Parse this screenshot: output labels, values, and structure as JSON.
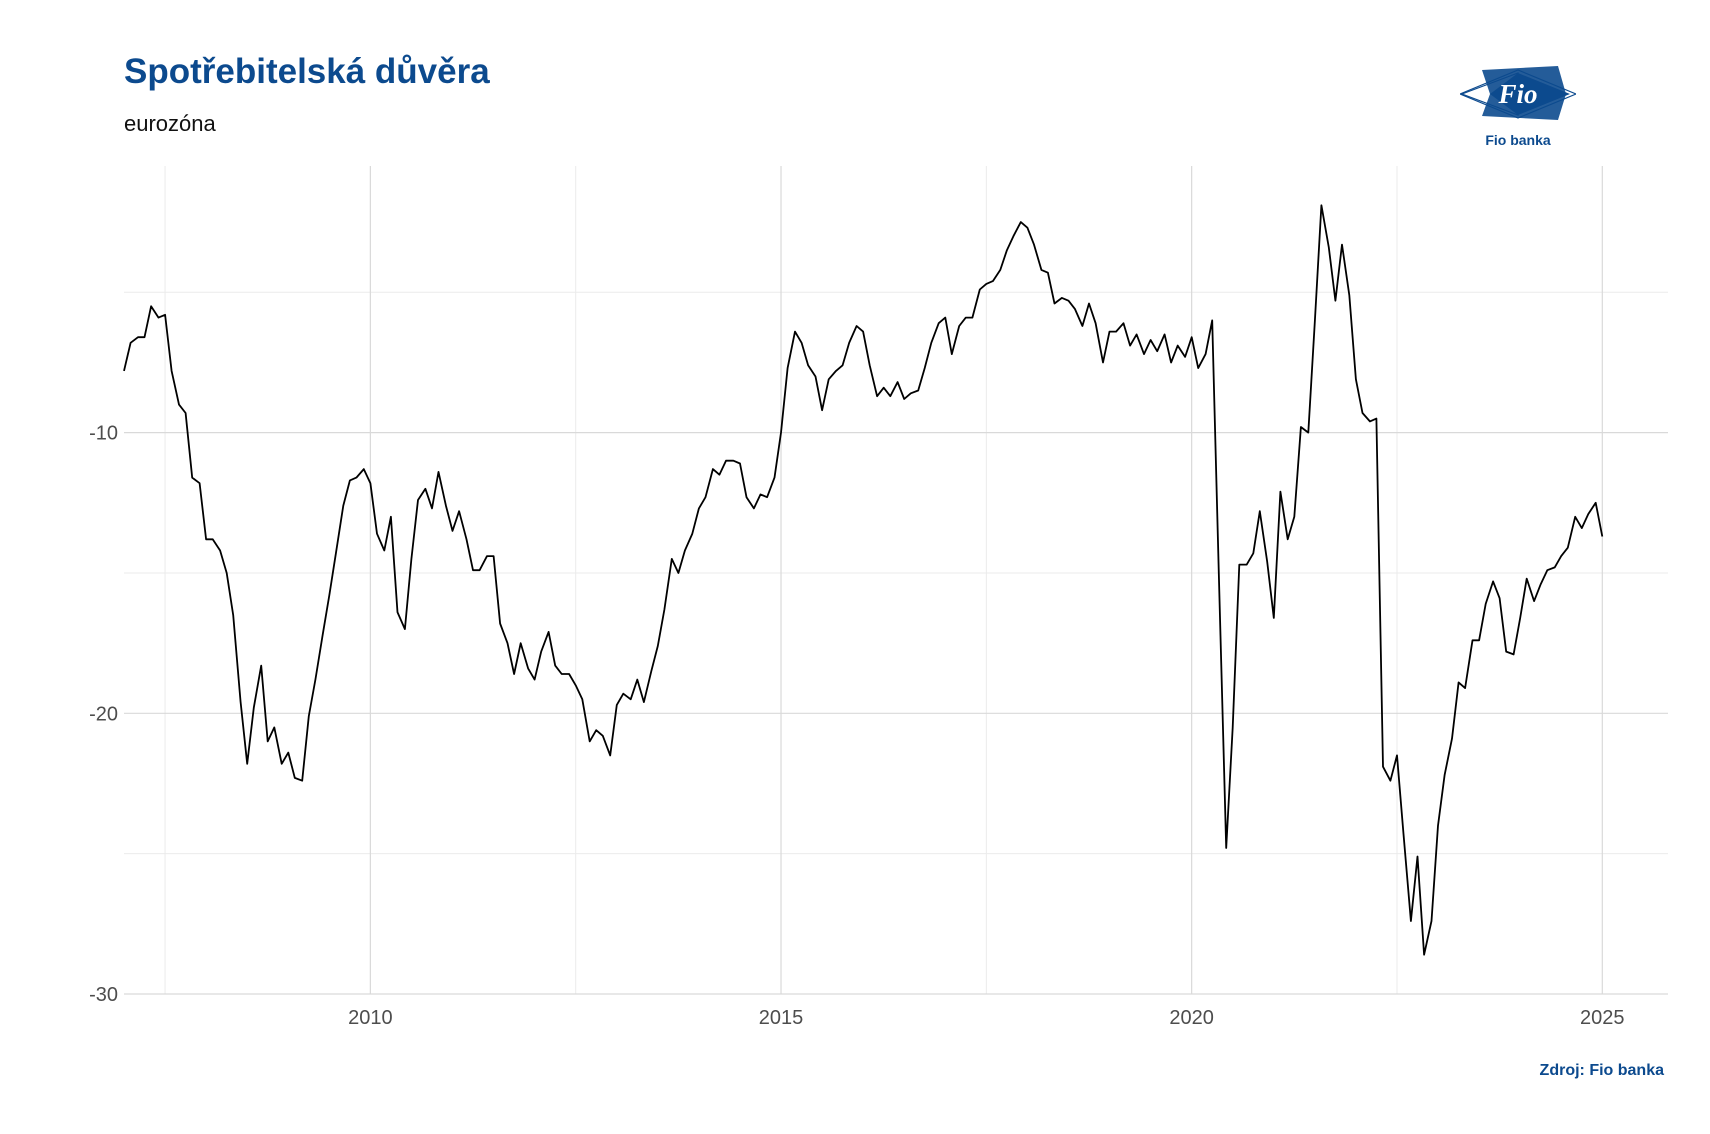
{
  "title": "Spotřebitelská důvěra",
  "subtitle": "eurozóna",
  "source": "Zdroj: Fio banka",
  "logo": {
    "mark": "Fio",
    "text": "Fio banka",
    "color": "#0c4a8e"
  },
  "chart_data": {
    "type": "line",
    "title": "Spotřebitelská důvěra",
    "subtitle": "eurozóna",
    "xlabel": "",
    "ylabel": "",
    "xlim": [
      2007.0,
      2025.8
    ],
    "ylim": [
      -30,
      -0.5
    ],
    "grid": true,
    "legend": "none",
    "x_ticks": [
      {
        "value": 2010,
        "label": "2010"
      },
      {
        "value": 2015,
        "label": "2015"
      },
      {
        "value": 2020,
        "label": "2020"
      },
      {
        "value": 2025,
        "label": "2025"
      }
    ],
    "y_ticks": [
      {
        "value": -10,
        "label": "-10"
      },
      {
        "value": -20,
        "label": "-20"
      },
      {
        "value": -30,
        "label": "-30"
      }
    ],
    "line_color": "#000000",
    "series": [
      {
        "values": [
          [
            2007.0,
            -7.8
          ],
          [
            2007.08,
            -6.8
          ],
          [
            2007.17,
            -6.6
          ],
          [
            2007.25,
            -6.6
          ],
          [
            2007.33,
            -5.5
          ],
          [
            2007.42,
            -5.9
          ],
          [
            2007.5,
            -5.8
          ],
          [
            2007.58,
            -7.8
          ],
          [
            2007.67,
            -9.0
          ],
          [
            2007.75,
            -9.3
          ],
          [
            2007.83,
            -11.6
          ],
          [
            2007.92,
            -11.8
          ],
          [
            2008.0,
            -13.8
          ],
          [
            2008.08,
            -13.8
          ],
          [
            2008.17,
            -14.2
          ],
          [
            2008.25,
            -15.0
          ],
          [
            2008.33,
            -16.5
          ],
          [
            2008.42,
            -19.6
          ],
          [
            2008.5,
            -21.8
          ],
          [
            2008.58,
            -19.8
          ],
          [
            2008.67,
            -18.3
          ],
          [
            2008.75,
            -21.0
          ],
          [
            2008.83,
            -20.5
          ],
          [
            2008.92,
            -21.8
          ],
          [
            2009.0,
            -21.4
          ],
          [
            2009.08,
            -22.3
          ],
          [
            2009.17,
            -22.4
          ],
          [
            2009.25,
            -20.1
          ],
          [
            2009.33,
            -18.8
          ],
          [
            2009.42,
            -17.2
          ],
          [
            2009.5,
            -15.8
          ],
          [
            2009.58,
            -14.3
          ],
          [
            2009.67,
            -12.6
          ],
          [
            2009.75,
            -11.7
          ],
          [
            2009.83,
            -11.6
          ],
          [
            2009.92,
            -11.3
          ],
          [
            2010.0,
            -11.8
          ],
          [
            2010.08,
            -13.6
          ],
          [
            2010.17,
            -14.2
          ],
          [
            2010.25,
            -13.0
          ],
          [
            2010.33,
            -16.4
          ],
          [
            2010.42,
            -17.0
          ],
          [
            2010.5,
            -14.5
          ],
          [
            2010.58,
            -12.4
          ],
          [
            2010.67,
            -12.0
          ],
          [
            2010.75,
            -12.7
          ],
          [
            2010.83,
            -11.4
          ],
          [
            2010.92,
            -12.6
          ],
          [
            2011.0,
            -13.5
          ],
          [
            2011.08,
            -12.8
          ],
          [
            2011.17,
            -13.8
          ],
          [
            2011.25,
            -14.9
          ],
          [
            2011.33,
            -14.9
          ],
          [
            2011.42,
            -14.4
          ],
          [
            2011.5,
            -14.4
          ],
          [
            2011.58,
            -16.8
          ],
          [
            2011.67,
            -17.5
          ],
          [
            2011.75,
            -18.6
          ],
          [
            2011.83,
            -17.5
          ],
          [
            2011.92,
            -18.4
          ],
          [
            2012.0,
            -18.8
          ],
          [
            2012.08,
            -17.8
          ],
          [
            2012.17,
            -17.1
          ],
          [
            2012.25,
            -18.3
          ],
          [
            2012.33,
            -18.6
          ],
          [
            2012.42,
            -18.6
          ],
          [
            2012.5,
            -19.0
          ],
          [
            2012.58,
            -19.5
          ],
          [
            2012.67,
            -21.0
          ],
          [
            2012.75,
            -20.6
          ],
          [
            2012.83,
            -20.8
          ],
          [
            2012.92,
            -21.5
          ],
          [
            2013.0,
            -19.7
          ],
          [
            2013.08,
            -19.3
          ],
          [
            2013.17,
            -19.5
          ],
          [
            2013.25,
            -18.8
          ],
          [
            2013.33,
            -19.6
          ],
          [
            2013.42,
            -18.5
          ],
          [
            2013.5,
            -17.6
          ],
          [
            2013.58,
            -16.3
          ],
          [
            2013.67,
            -14.5
          ],
          [
            2013.75,
            -15.0
          ],
          [
            2013.83,
            -14.2
          ],
          [
            2013.92,
            -13.6
          ],
          [
            2014.0,
            -12.7
          ],
          [
            2014.08,
            -12.3
          ],
          [
            2014.17,
            -11.3
          ],
          [
            2014.25,
            -11.5
          ],
          [
            2014.33,
            -11.0
          ],
          [
            2014.42,
            -11.0
          ],
          [
            2014.5,
            -11.1
          ],
          [
            2014.58,
            -12.3
          ],
          [
            2014.67,
            -12.7
          ],
          [
            2014.75,
            -12.2
          ],
          [
            2014.83,
            -12.3
          ],
          [
            2014.92,
            -11.6
          ],
          [
            2015.0,
            -10.0
          ],
          [
            2015.08,
            -7.7
          ],
          [
            2015.17,
            -6.4
          ],
          [
            2015.25,
            -6.8
          ],
          [
            2015.33,
            -7.6
          ],
          [
            2015.42,
            -8.0
          ],
          [
            2015.5,
            -9.2
          ],
          [
            2015.58,
            -8.1
          ],
          [
            2015.67,
            -7.8
          ],
          [
            2015.75,
            -7.6
          ],
          [
            2015.83,
            -6.8
          ],
          [
            2015.92,
            -6.2
          ],
          [
            2016.0,
            -6.4
          ],
          [
            2016.08,
            -7.6
          ],
          [
            2016.17,
            -8.7
          ],
          [
            2016.25,
            -8.4
          ],
          [
            2016.33,
            -8.7
          ],
          [
            2016.42,
            -8.2
          ],
          [
            2016.5,
            -8.8
          ],
          [
            2016.58,
            -8.6
          ],
          [
            2016.67,
            -8.5
          ],
          [
            2016.75,
            -7.7
          ],
          [
            2016.83,
            -6.8
          ],
          [
            2016.92,
            -6.1
          ],
          [
            2017.0,
            -5.9
          ],
          [
            2017.08,
            -7.2
          ],
          [
            2017.17,
            -6.2
          ],
          [
            2017.25,
            -5.9
          ],
          [
            2017.33,
            -5.9
          ],
          [
            2017.42,
            -4.9
          ],
          [
            2017.5,
            -4.7
          ],
          [
            2017.58,
            -4.6
          ],
          [
            2017.67,
            -4.2
          ],
          [
            2017.75,
            -3.5
          ],
          [
            2017.83,
            -3.0
          ],
          [
            2017.92,
            -2.5
          ],
          [
            2018.0,
            -2.7
          ],
          [
            2018.08,
            -3.3
          ],
          [
            2018.17,
            -4.2
          ],
          [
            2018.25,
            -4.3
          ],
          [
            2018.33,
            -5.4
          ],
          [
            2018.42,
            -5.2
          ],
          [
            2018.5,
            -5.3
          ],
          [
            2018.58,
            -5.6
          ],
          [
            2018.67,
            -6.2
          ],
          [
            2018.75,
            -5.4
          ],
          [
            2018.83,
            -6.1
          ],
          [
            2018.92,
            -7.5
          ],
          [
            2019.0,
            -6.4
          ],
          [
            2019.08,
            -6.4
          ],
          [
            2019.17,
            -6.1
          ],
          [
            2019.25,
            -6.9
          ],
          [
            2019.33,
            -6.5
          ],
          [
            2019.42,
            -7.2
          ],
          [
            2019.5,
            -6.7
          ],
          [
            2019.58,
            -7.1
          ],
          [
            2019.67,
            -6.5
          ],
          [
            2019.75,
            -7.5
          ],
          [
            2019.83,
            -6.9
          ],
          [
            2019.92,
            -7.3
          ],
          [
            2020.0,
            -6.6
          ],
          [
            2020.08,
            -7.7
          ],
          [
            2020.17,
            -7.2
          ],
          [
            2020.25,
            -6.0
          ],
          [
            2020.33,
            -15.0
          ],
          [
            2020.42,
            -24.8
          ],
          [
            2020.5,
            -20.5
          ],
          [
            2020.58,
            -14.7
          ],
          [
            2020.67,
            -14.7
          ],
          [
            2020.75,
            -14.3
          ],
          [
            2020.83,
            -12.8
          ],
          [
            2020.92,
            -14.6
          ],
          [
            2021.0,
            -16.6
          ],
          [
            2021.08,
            -12.1
          ],
          [
            2021.17,
            -13.8
          ],
          [
            2021.25,
            -13.0
          ],
          [
            2021.33,
            -9.8
          ],
          [
            2021.42,
            -10.0
          ],
          [
            2021.5,
            -6.0
          ],
          [
            2021.58,
            -1.9
          ],
          [
            2021.67,
            -3.4
          ],
          [
            2021.75,
            -5.3
          ],
          [
            2021.83,
            -3.3
          ],
          [
            2021.92,
            -5.1
          ],
          [
            2022.0,
            -8.1
          ],
          [
            2022.08,
            -9.3
          ],
          [
            2022.17,
            -9.6
          ],
          [
            2022.25,
            -9.5
          ],
          [
            2022.33,
            -21.9
          ],
          [
            2022.42,
            -22.4
          ],
          [
            2022.5,
            -21.5
          ],
          [
            2022.58,
            -24.3
          ],
          [
            2022.67,
            -27.4
          ],
          [
            2022.75,
            -25.1
          ],
          [
            2022.83,
            -28.6
          ],
          [
            2022.92,
            -27.4
          ],
          [
            2023.0,
            -24.0
          ],
          [
            2023.08,
            -22.2
          ],
          [
            2023.17,
            -20.9
          ],
          [
            2023.25,
            -18.9
          ],
          [
            2023.33,
            -19.1
          ],
          [
            2023.42,
            -17.4
          ],
          [
            2023.5,
            -17.4
          ],
          [
            2023.58,
            -16.1
          ],
          [
            2023.67,
            -15.3
          ],
          [
            2023.75,
            -15.9
          ],
          [
            2023.83,
            -17.8
          ],
          [
            2023.92,
            -17.9
          ],
          [
            2024.0,
            -16.6
          ],
          [
            2024.08,
            -15.2
          ],
          [
            2024.17,
            -16.0
          ],
          [
            2024.25,
            -15.4
          ],
          [
            2024.33,
            -14.9
          ],
          [
            2024.42,
            -14.8
          ],
          [
            2024.5,
            -14.4
          ],
          [
            2024.58,
            -14.1
          ],
          [
            2024.67,
            -13.0
          ],
          [
            2024.75,
            -13.4
          ],
          [
            2024.83,
            -12.9
          ],
          [
            2024.92,
            -12.5
          ],
          [
            2025.0,
            -13.7
          ]
        ]
      }
    ]
  }
}
